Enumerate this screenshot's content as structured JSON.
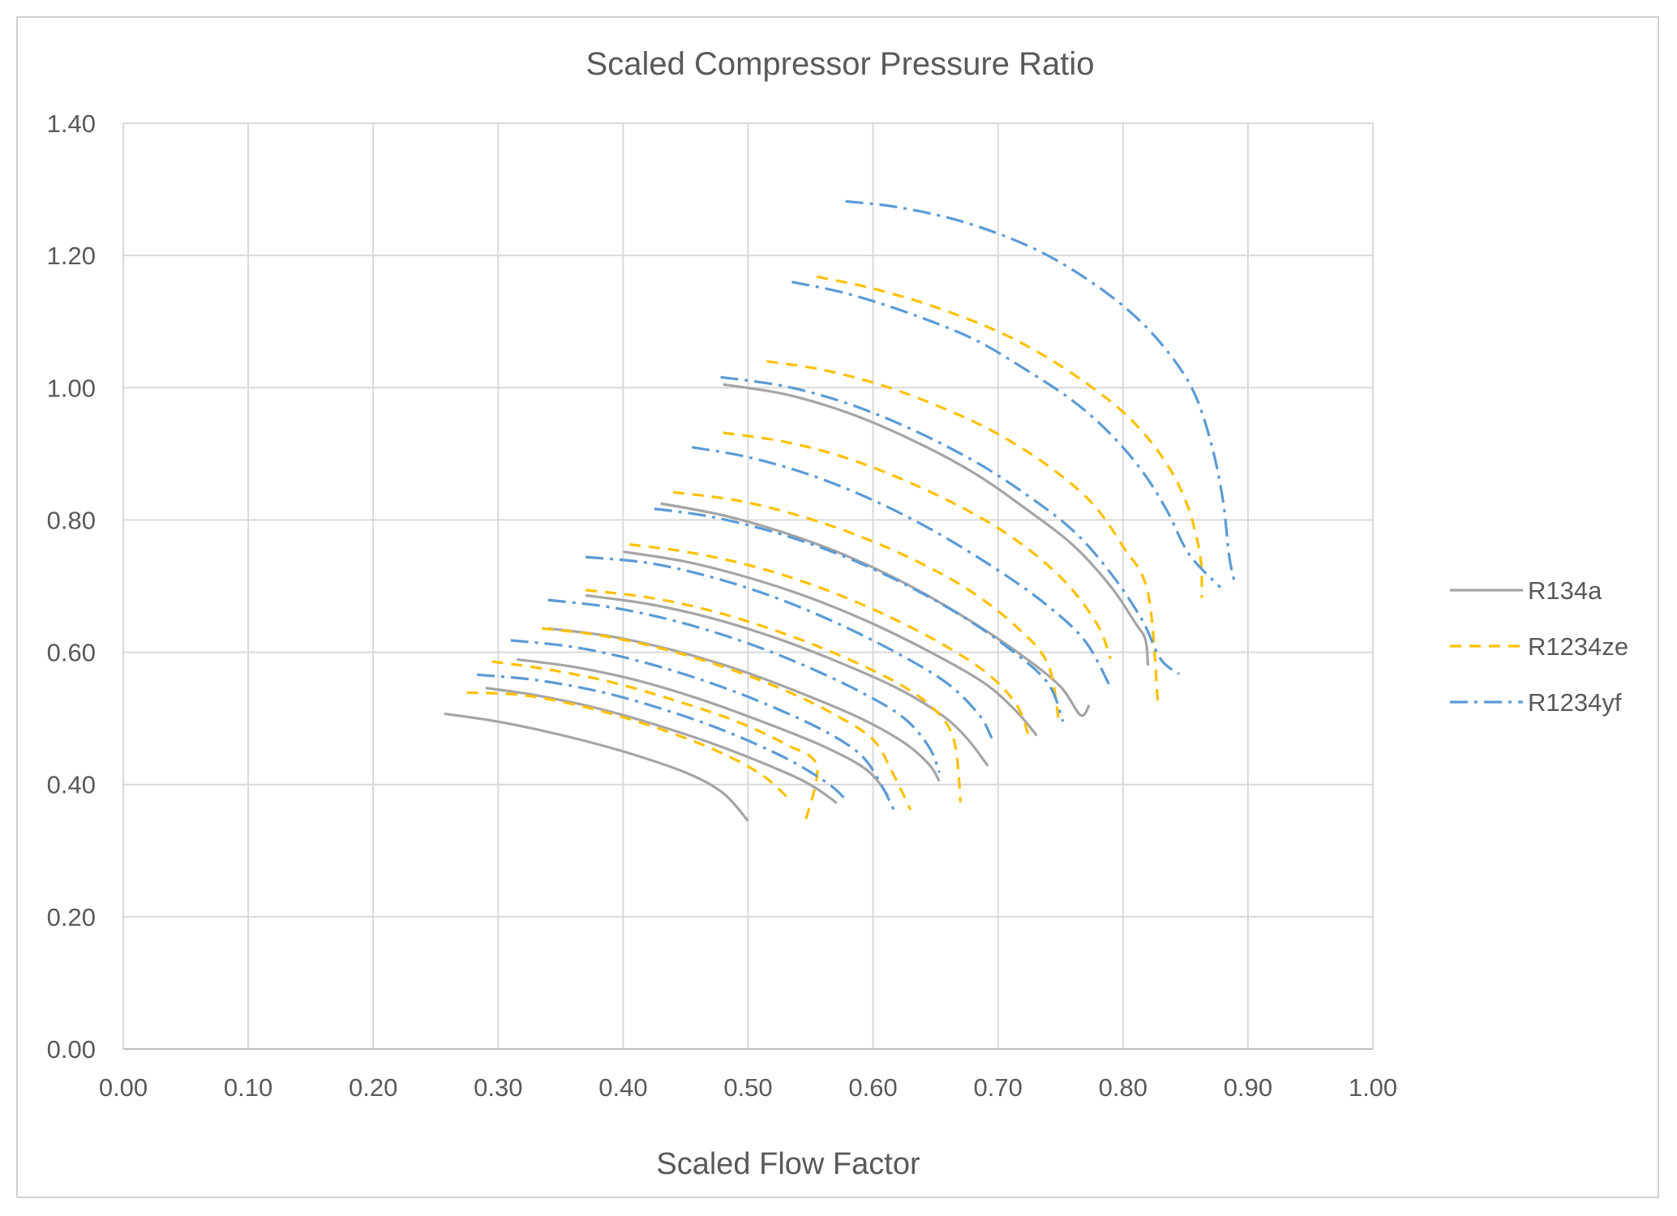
{
  "chart_data": {
    "type": "line",
    "title": "Scaled Compressor Pressure Ratio",
    "xlabel": "Scaled Flow Factor",
    "ylabel": "",
    "xlim": [
      0,
      1
    ],
    "ylim": [
      0,
      1.4
    ],
    "x_ticks": [
      "0.00",
      "0.10",
      "0.20",
      "0.30",
      "0.40",
      "0.50",
      "0.60",
      "0.70",
      "0.80",
      "0.90",
      "1.00"
    ],
    "y_ticks": [
      "0.00",
      "0.20",
      "0.40",
      "0.60",
      "0.80",
      "1.00",
      "1.20",
      "1.40"
    ],
    "grid": true,
    "legend_position": "right",
    "series": [
      {
        "name": "R134a",
        "color": "#a5a5a5",
        "dash": "solid",
        "curves": [
          [
            [
              0.257,
              0.507
            ],
            [
              0.3,
              0.495
            ],
            [
              0.35,
              0.475
            ],
            [
              0.4,
              0.45
            ],
            [
              0.45,
              0.418
            ],
            [
              0.48,
              0.387
            ],
            [
              0.5,
              0.345
            ]
          ],
          [
            [
              0.29,
              0.546
            ],
            [
              0.33,
              0.535
            ],
            [
              0.38,
              0.515
            ],
            [
              0.43,
              0.488
            ],
            [
              0.48,
              0.456
            ],
            [
              0.53,
              0.418
            ],
            [
              0.553,
              0.396
            ],
            [
              0.571,
              0.372
            ]
          ],
          [
            [
              0.315,
              0.589
            ],
            [
              0.36,
              0.578
            ],
            [
              0.41,
              0.558
            ],
            [
              0.46,
              0.53
            ],
            [
              0.51,
              0.496
            ],
            [
              0.56,
              0.458
            ],
            [
              0.595,
              0.422
            ],
            [
              0.612,
              0.383
            ]
          ],
          [
            [
              0.34,
              0.636
            ],
            [
              0.39,
              0.624
            ],
            [
              0.44,
              0.603
            ],
            [
              0.49,
              0.575
            ],
            [
              0.54,
              0.54
            ],
            [
              0.59,
              0.5
            ],
            [
              0.625,
              0.463
            ],
            [
              0.645,
              0.43
            ],
            [
              0.653,
              0.405
            ]
          ],
          [
            [
              0.37,
              0.686
            ],
            [
              0.42,
              0.673
            ],
            [
              0.47,
              0.652
            ],
            [
              0.52,
              0.623
            ],
            [
              0.57,
              0.587
            ],
            [
              0.62,
              0.545
            ],
            [
              0.655,
              0.505
            ],
            [
              0.675,
              0.47
            ],
            [
              0.692,
              0.428
            ]
          ],
          [
            [
              0.4,
              0.752
            ],
            [
              0.45,
              0.737
            ],
            [
              0.5,
              0.713
            ],
            [
              0.55,
              0.682
            ],
            [
              0.6,
              0.643
            ],
            [
              0.65,
              0.596
            ],
            [
              0.69,
              0.552
            ],
            [
              0.715,
              0.51
            ],
            [
              0.731,
              0.474
            ]
          ],
          [
            [
              0.43,
              0.825
            ],
            [
              0.48,
              0.807
            ],
            [
              0.53,
              0.78
            ],
            [
              0.58,
              0.745
            ],
            [
              0.63,
              0.7
            ],
            [
              0.68,
              0.645
            ],
            [
              0.72,
              0.594
            ],
            [
              0.75,
              0.548
            ],
            [
              0.766,
              0.505
            ],
            [
              0.773,
              0.52
            ]
          ],
          [
            [
              0.48,
              1.005
            ],
            [
              0.53,
              0.99
            ],
            [
              0.58,
              0.962
            ],
            [
              0.63,
              0.922
            ],
            [
              0.68,
              0.872
            ],
            [
              0.72,
              0.82
            ],
            [
              0.76,
              0.762
            ],
            [
              0.79,
              0.7
            ],
            [
              0.81,
              0.644
            ],
            [
              0.818,
              0.619
            ],
            [
              0.82,
              0.58
            ]
          ]
        ]
      },
      {
        "name": "R1234ze",
        "color": "#ffc000",
        "dash": "14,10",
        "curves": [
          [
            [
              0.275,
              0.539
            ],
            [
              0.32,
              0.535
            ],
            [
              0.37,
              0.517
            ],
            [
              0.42,
              0.49
            ],
            [
              0.47,
              0.455
            ],
            [
              0.51,
              0.416
            ],
            [
              0.535,
              0.374
            ]
          ],
          [
            [
              0.295,
              0.586
            ],
            [
              0.34,
              0.574
            ],
            [
              0.39,
              0.555
            ],
            [
              0.44,
              0.528
            ],
            [
              0.49,
              0.496
            ],
            [
              0.53,
              0.461
            ],
            [
              0.555,
              0.428
            ],
            [
              0.546,
              0.345
            ]
          ],
          [
            [
              0.335,
              0.636
            ],
            [
              0.38,
              0.626
            ],
            [
              0.43,
              0.606
            ],
            [
              0.48,
              0.578
            ],
            [
              0.53,
              0.542
            ],
            [
              0.57,
              0.505
            ],
            [
              0.6,
              0.468
            ],
            [
              0.615,
              0.42
            ],
            [
              0.63,
              0.362
            ]
          ],
          [
            [
              0.37,
              0.694
            ],
            [
              0.42,
              0.683
            ],
            [
              0.47,
              0.663
            ],
            [
              0.52,
              0.634
            ],
            [
              0.57,
              0.598
            ],
            [
              0.62,
              0.553
            ],
            [
              0.65,
              0.512
            ],
            [
              0.665,
              0.465
            ],
            [
              0.67,
              0.373
            ]
          ],
          [
            [
              0.405,
              0.763
            ],
            [
              0.45,
              0.752
            ],
            [
              0.5,
              0.732
            ],
            [
              0.55,
              0.703
            ],
            [
              0.6,
              0.665
            ],
            [
              0.65,
              0.618
            ],
            [
              0.69,
              0.57
            ],
            [
              0.715,
              0.52
            ],
            [
              0.725,
              0.47
            ]
          ],
          [
            [
              0.44,
              0.842
            ],
            [
              0.49,
              0.83
            ],
            [
              0.54,
              0.807
            ],
            [
              0.59,
              0.775
            ],
            [
              0.64,
              0.733
            ],
            [
              0.68,
              0.69
            ],
            [
              0.715,
              0.638
            ],
            [
              0.74,
              0.582
            ],
            [
              0.749,
              0.49
            ]
          ],
          [
            [
              0.48,
              0.932
            ],
            [
              0.53,
              0.918
            ],
            [
              0.58,
              0.893
            ],
            [
              0.63,
              0.856
            ],
            [
              0.68,
              0.81
            ],
            [
              0.72,
              0.762
            ],
            [
              0.755,
              0.704
            ],
            [
              0.78,
              0.64
            ],
            [
              0.79,
              0.59
            ]
          ],
          [
            [
              0.515,
              1.04
            ],
            [
              0.56,
              1.027
            ],
            [
              0.61,
              1.002
            ],
            [
              0.66,
              0.966
            ],
            [
              0.7,
              0.93
            ],
            [
              0.74,
              0.882
            ],
            [
              0.775,
              0.826
            ],
            [
              0.8,
              0.76
            ],
            [
              0.82,
              0.69
            ],
            [
              0.828,
              0.522
            ]
          ],
          [
            [
              0.555,
              1.168
            ],
            [
              0.6,
              1.15
            ],
            [
              0.65,
              1.122
            ],
            [
              0.7,
              1.085
            ],
            [
              0.74,
              1.045
            ],
            [
              0.78,
              0.994
            ],
            [
              0.81,
              0.945
            ],
            [
              0.835,
              0.885
            ],
            [
              0.852,
              0.82
            ],
            [
              0.862,
              0.743
            ],
            [
              0.863,
              0.682
            ]
          ]
        ]
      },
      {
        "name": "R1234yf",
        "color": "#5b9bd5",
        "dash": "22,8,4,8",
        "curves": [
          [
            [
              0.283,
              0.566
            ],
            [
              0.33,
              0.558
            ],
            [
              0.38,
              0.541
            ],
            [
              0.43,
              0.515
            ],
            [
              0.48,
              0.482
            ],
            [
              0.53,
              0.44
            ],
            [
              0.565,
              0.4
            ],
            [
              0.58,
              0.373
            ]
          ],
          [
            [
              0.31,
              0.618
            ],
            [
              0.36,
              0.608
            ],
            [
              0.41,
              0.588
            ],
            [
              0.46,
              0.56
            ],
            [
              0.51,
              0.525
            ],
            [
              0.56,
              0.482
            ],
            [
              0.59,
              0.445
            ],
            [
              0.605,
              0.405
            ],
            [
              0.617,
              0.36
            ]
          ],
          [
            [
              0.34,
              0.679
            ],
            [
              0.39,
              0.668
            ],
            [
              0.44,
              0.648
            ],
            [
              0.49,
              0.62
            ],
            [
              0.54,
              0.584
            ],
            [
              0.59,
              0.54
            ],
            [
              0.625,
              0.5
            ],
            [
              0.645,
              0.456
            ],
            [
              0.653,
              0.418
            ]
          ],
          [
            [
              0.37,
              0.744
            ],
            [
              0.42,
              0.735
            ],
            [
              0.47,
              0.714
            ],
            [
              0.52,
              0.684
            ],
            [
              0.57,
              0.645
            ],
            [
              0.62,
              0.598
            ],
            [
              0.66,
              0.552
            ],
            [
              0.685,
              0.505
            ],
            [
              0.695,
              0.47
            ]
          ],
          [
            [
              0.425,
              0.817
            ],
            [
              0.47,
              0.805
            ],
            [
              0.52,
              0.782
            ],
            [
              0.57,
              0.75
            ],
            [
              0.62,
              0.708
            ],
            [
              0.67,
              0.656
            ],
            [
              0.71,
              0.604
            ],
            [
              0.74,
              0.553
            ],
            [
              0.752,
              0.495
            ]
          ],
          [
            [
              0.455,
              0.91
            ],
            [
              0.5,
              0.895
            ],
            [
              0.55,
              0.868
            ],
            [
              0.6,
              0.83
            ],
            [
              0.65,
              0.782
            ],
            [
              0.7,
              0.724
            ],
            [
              0.74,
              0.67
            ],
            [
              0.77,
              0.616
            ],
            [
              0.79,
              0.547
            ]
          ],
          [
            [
              0.478,
              1.016
            ],
            [
              0.53,
              1.002
            ],
            [
              0.58,
              0.976
            ],
            [
              0.63,
              0.938
            ],
            [
              0.68,
              0.89
            ],
            [
              0.72,
              0.842
            ],
            [
              0.76,
              0.784
            ],
            [
              0.79,
              0.72
            ],
            [
              0.815,
              0.65
            ],
            [
              0.83,
              0.59
            ],
            [
              0.845,
              0.567
            ]
          ],
          [
            [
              0.535,
              1.16
            ],
            [
              0.58,
              1.142
            ],
            [
              0.63,
              1.112
            ],
            [
              0.68,
              1.074
            ],
            [
              0.72,
              1.03
            ],
            [
              0.76,
              0.98
            ],
            [
              0.79,
              0.93
            ],
            [
              0.815,
              0.875
            ],
            [
              0.835,
              0.815
            ],
            [
              0.853,
              0.748
            ],
            [
              0.878,
              0.698
            ]
          ],
          [
            [
              0.578,
              1.282
            ],
            [
              0.62,
              1.273
            ],
            [
              0.67,
              1.252
            ],
            [
              0.72,
              1.218
            ],
            [
              0.76,
              1.178
            ],
            [
              0.8,
              1.124
            ],
            [
              0.83,
              1.068
            ],
            [
              0.855,
              1.0
            ],
            [
              0.87,
              0.92
            ],
            [
              0.88,
              0.83
            ],
            [
              0.885,
              0.745
            ],
            [
              0.89,
              0.7
            ]
          ]
        ]
      }
    ]
  }
}
